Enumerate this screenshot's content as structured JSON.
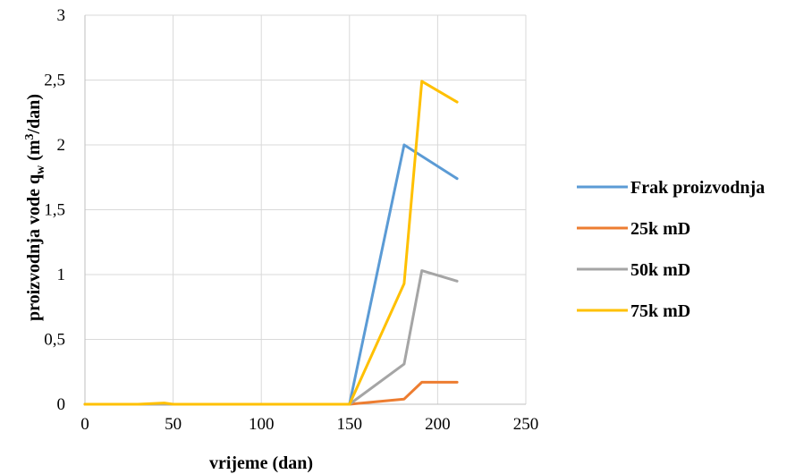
{
  "chart_data": {
    "type": "line",
    "xlabel": "vrijeme (dan)",
    "ylabel": {
      "main": "proizvodnja vode q",
      "sub": "w",
      "unit_pre": " (m",
      "sup": "3",
      "unit_post": "/dan)"
    },
    "xlim": [
      0,
      250
    ],
    "ylim": [
      0,
      3
    ],
    "x_ticks": [
      {
        "value": 0,
        "label": "0"
      },
      {
        "value": 50,
        "label": "50"
      },
      {
        "value": 100,
        "label": "100"
      },
      {
        "value": 150,
        "label": "150"
      },
      {
        "value": 200,
        "label": "200"
      },
      {
        "value": 250,
        "label": "250"
      }
    ],
    "y_ticks": [
      {
        "value": 0,
        "label": "0"
      },
      {
        "value": 0.5,
        "label": "0,5"
      },
      {
        "value": 1,
        "label": "1"
      },
      {
        "value": 1.5,
        "label": "1,5"
      },
      {
        "value": 2,
        "label": "2"
      },
      {
        "value": 2.5,
        "label": "2,5"
      },
      {
        "value": 3,
        "label": "3"
      }
    ],
    "grid": true,
    "legend_position": "right",
    "series": [
      {
        "name": "Frak proizvodnja",
        "color": "#5b9bd5",
        "points": [
          [
            0,
            0
          ],
          [
            30,
            0
          ],
          [
            45,
            0
          ],
          [
            50,
            0
          ],
          [
            100,
            0
          ],
          [
            150,
            0
          ],
          [
            181,
            2.0
          ],
          [
            211,
            1.74
          ]
        ]
      },
      {
        "name": "25k mD",
        "color": "#ed7d31",
        "points": [
          [
            0,
            0
          ],
          [
            30,
            0
          ],
          [
            45,
            0
          ],
          [
            50,
            0
          ],
          [
            100,
            0
          ],
          [
            150,
            0
          ],
          [
            181,
            0.04
          ],
          [
            191,
            0.17
          ],
          [
            211,
            0.17
          ]
        ]
      },
      {
        "name": "50k mD",
        "color": "#a5a5a5",
        "points": [
          [
            0,
            0
          ],
          [
            30,
            0
          ],
          [
            45,
            0
          ],
          [
            50,
            0
          ],
          [
            100,
            0
          ],
          [
            150,
            0
          ],
          [
            181,
            0.31
          ],
          [
            191,
            1.03
          ],
          [
            211,
            0.95
          ]
        ]
      },
      {
        "name": "75k mD",
        "color": "#ffc000",
        "points": [
          [
            0,
            0
          ],
          [
            30,
            0
          ],
          [
            45,
            0.01
          ],
          [
            50,
            0
          ],
          [
            100,
            0
          ],
          [
            150,
            0
          ],
          [
            181,
            0.93
          ],
          [
            191,
            2.49
          ],
          [
            211,
            2.33
          ]
        ]
      }
    ]
  }
}
